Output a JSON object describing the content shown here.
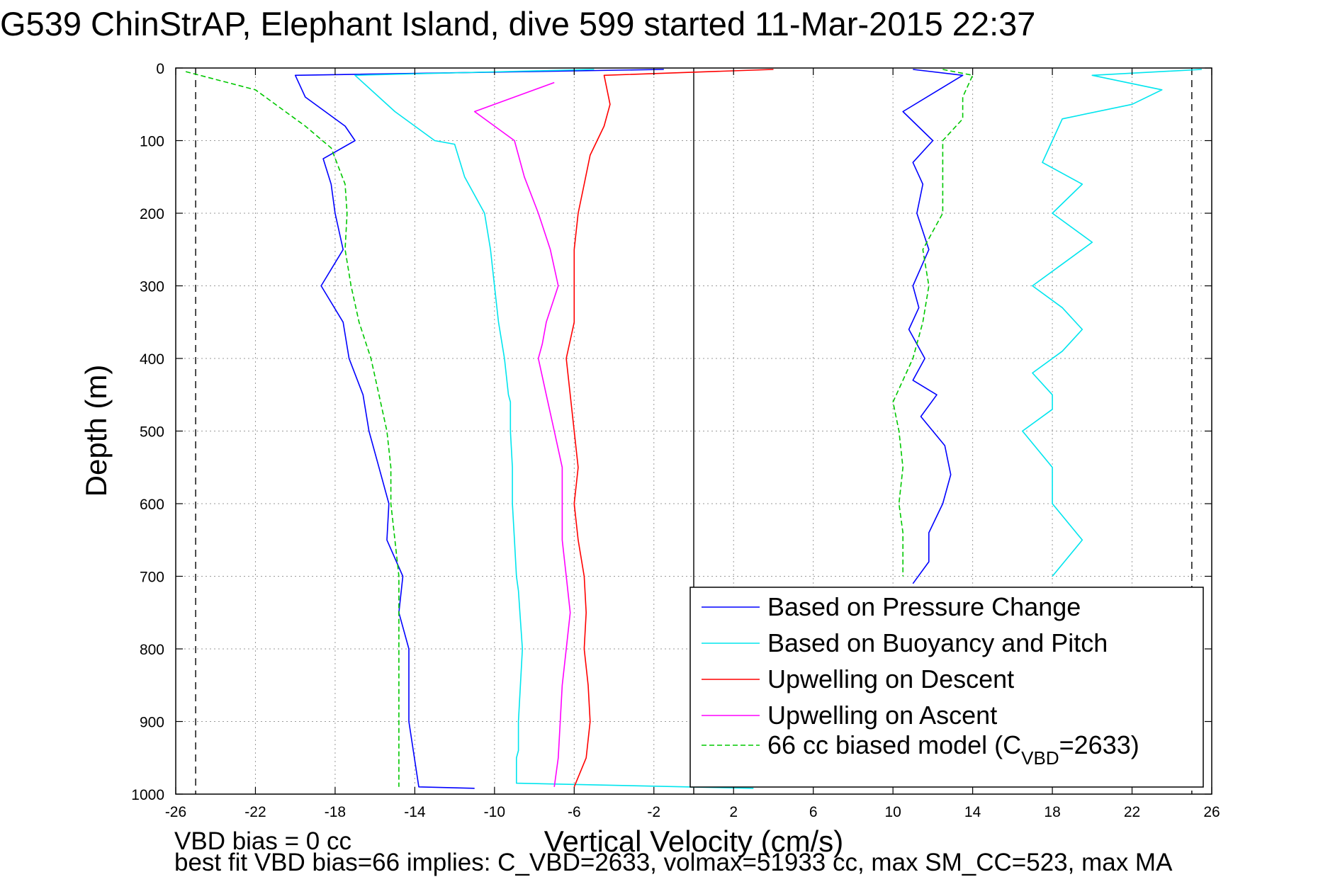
{
  "title": "G539 ChinStrAP, Elephant Island, dive 599 started 11-Mar-2015 22:37",
  "footer": {
    "line1": "VBD bias = 0 cc",
    "line2": "best fit VBD bias=66 implies: C_VBD=2633, volmax=51933 cc, max SM_CC=523, max MA"
  },
  "chart_data": {
    "type": "line",
    "title": "G539 ChinStrAP, Elephant Island, dive 599 started 11-Mar-2015 22:37",
    "xlabel": "Vertical Velocity (cm/s)",
    "ylabel": "Depth (m)",
    "xlim": [
      -26,
      26
    ],
    "ylim": [
      1000,
      0
    ],
    "x_ticks": [
      "-26",
      "-22",
      "-18",
      "-14",
      "-10",
      "-6",
      "-2",
      "2",
      "6",
      "10",
      "14",
      "18",
      "22",
      "26"
    ],
    "y_ticks": [
      "0",
      "100",
      "200",
      "300",
      "400",
      "500",
      "600",
      "700",
      "800",
      "900",
      "1000"
    ],
    "grid": true,
    "legend_position": "bottom-right",
    "vertical_lines": [
      {
        "x": -25,
        "style": "dashed"
      },
      {
        "x": 0,
        "style": "solid"
      },
      {
        "x": 25,
        "style": "dashed"
      }
    ],
    "series": [
      {
        "name": "Based on Pressure Change",
        "color": "#0000ff",
        "dash": "solid",
        "x": [
          -1.5,
          -20,
          -19.5,
          -17.5,
          -17,
          -18.6,
          -18.2,
          -18,
          -17.6,
          -18.7,
          -17.6,
          -17.3,
          -16.6,
          -16.3,
          -15.8,
          -15.3,
          -15.4,
          -14.6,
          -14.8,
          -14.3,
          -14.3,
          -13.8,
          -11
        ],
        "y": [
          2,
          10,
          40,
          80,
          100,
          125,
          160,
          200,
          250,
          300,
          350,
          400,
          450,
          500,
          550,
          600,
          650,
          700,
          750,
          800,
          900,
          990,
          992
        ]
      },
      {
        "name": "Based on Buoyancy and Pitch",
        "color": "#00e5ee",
        "dash": "solid",
        "x": [
          -5,
          -17,
          -15,
          -13,
          -12,
          -11.5,
          -10.5,
          -10.2,
          -10,
          -9.8,
          -9.5,
          -9.3,
          -9.2,
          -9.2,
          -9.1,
          -9.1,
          -9.0,
          -8.9,
          -8.8,
          -8.7,
          -8.6,
          -8.7,
          -8.8,
          -8.8,
          -8.9,
          -8.9,
          -8.9,
          3
        ],
        "y": [
          2,
          10,
          60,
          100,
          105,
          150,
          200,
          250,
          300,
          350,
          400,
          450,
          460,
          500,
          550,
          600,
          650,
          700,
          720,
          760,
          800,
          850,
          900,
          940,
          950,
          975,
          985,
          992
        ]
      },
      {
        "name": "Upwelling on Descent",
        "color": "#ff0000",
        "dash": "solid",
        "x": [
          4,
          -4.5,
          -4.2,
          -4.5,
          -5.2,
          -5.5,
          -5.8,
          -6,
          -6,
          -6,
          -6.4,
          -6.2,
          -6,
          -5.8,
          -6,
          -5.8,
          -5.5,
          -5.4,
          -5.5,
          -5.3,
          -5.2,
          -5.4,
          -6
        ],
        "y": [
          2,
          10,
          50,
          80,
          120,
          160,
          200,
          250,
          300,
          350,
          400,
          450,
          500,
          550,
          600,
          650,
          700,
          750,
          800,
          850,
          900,
          950,
          990
        ]
      },
      {
        "name": "Upwelling on Ascent",
        "color": "#ff00ff",
        "dash": "solid",
        "x": [
          -7,
          -11,
          -9,
          -8.5,
          -7.8,
          -7.2,
          -6.8,
          -7.4,
          -7.6,
          -7.8,
          -7.4,
          -7,
          -6.6,
          -6.6,
          -6.6,
          -6.4,
          -6.2,
          -6.4,
          -6.6,
          -6.7,
          -6.8,
          -7
        ],
        "y": [
          20,
          60,
          100,
          150,
          200,
          250,
          300,
          350,
          380,
          400,
          450,
          500,
          550,
          600,
          650,
          700,
          750,
          800,
          850,
          900,
          950,
          990
        ]
      },
      {
        "name": "66 cc biased model (C_VBD=2633)",
        "color": "#00c800",
        "dash": "dashed",
        "x": [
          -25.5,
          -22,
          -19.5,
          -18.2,
          -17.5,
          -17.4,
          -17.5,
          -17.2,
          -16.8,
          -16.2,
          -15.8,
          -15.4,
          -15.2,
          -15.2,
          -15,
          -14.8,
          -14.8,
          -14.8,
          -14.8
        ],
        "y": [
          5,
          30,
          80,
          110,
          160,
          200,
          250,
          300,
          350,
          400,
          450,
          500,
          550,
          600,
          650,
          700,
          800,
          900,
          990
        ]
      },
      {
        "name": "",
        "color": "#0000ff",
        "dash": "solid",
        "x": [
          11,
          13.5,
          10.5,
          12,
          11,
          11.5,
          11.2,
          11.8,
          11,
          11.3,
          10.8,
          11.6,
          11,
          12.2,
          11.4,
          12.6,
          12.9,
          12.5,
          11.8,
          11.8,
          11
        ],
        "y": [
          2,
          10,
          60,
          100,
          130,
          160,
          200,
          250,
          300,
          330,
          360,
          400,
          430,
          450,
          480,
          520,
          560,
          600,
          640,
          680,
          710
        ]
      },
      {
        "name": "",
        "color": "#00e5ee",
        "dash": "solid",
        "x": [
          25.5,
          20,
          23.5,
          22,
          18.5,
          18,
          17.5,
          19.5,
          18,
          20,
          18.5,
          17,
          18.5,
          19.5,
          18.5,
          17,
          18,
          18,
          16.5,
          18,
          18,
          19.5,
          18
        ],
        "y": [
          2,
          10,
          30,
          50,
          70,
          100,
          130,
          160,
          200,
          240,
          270,
          300,
          330,
          360,
          390,
          420,
          450,
          470,
          500,
          550,
          600,
          650,
          700
        ]
      },
      {
        "name": "",
        "color": "#00c800",
        "dash": "dashed",
        "x": [
          12.5,
          14,
          13.5,
          13.5,
          12.5,
          12.5,
          12.5,
          11.5,
          11.8,
          11.5,
          11,
          10.5,
          10,
          10.3,
          10.5,
          10.3,
          10.5,
          10.5,
          10.5
        ],
        "y": [
          2,
          10,
          40,
          70,
          100,
          150,
          200,
          250,
          300,
          350,
          400,
          430,
          460,
          500,
          550,
          600,
          640,
          670,
          700
        ]
      }
    ]
  }
}
